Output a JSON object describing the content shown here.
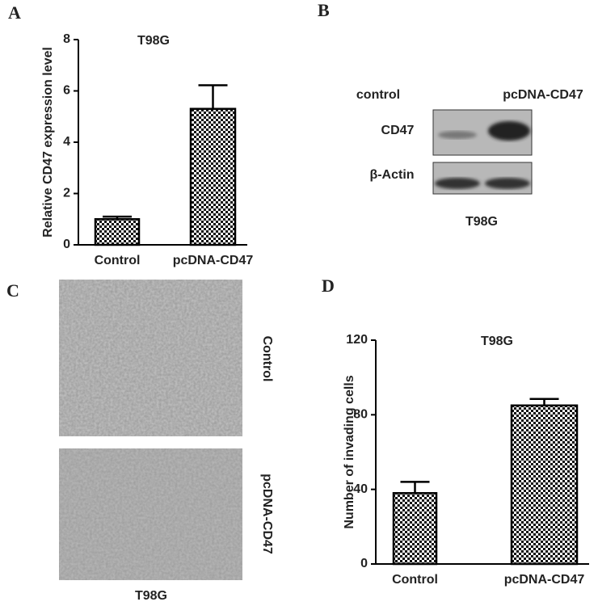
{
  "panel_labels": [
    "A",
    "B",
    "C",
    "D"
  ],
  "chart_data": [
    {
      "type": "bar",
      "title": "T98G",
      "y_label": "Relative CD47 expression level",
      "categories": [
        "Control",
        "pcDNA-CD47"
      ],
      "values": [
        1.0,
        5.3
      ],
      "errors": [
        0.1,
        0.92
      ],
      "color": "#000000",
      "ylim": [
        0,
        8
      ],
      "yticks": [
        0,
        2,
        4,
        6,
        8
      ]
    },
    {
      "type": "bar",
      "title": "T98G",
      "y_label": "Number of invading cells",
      "categories": [
        "Control",
        "pcDNA-CD47"
      ],
      "values": [
        38,
        85
      ],
      "errors": [
        6,
        3.5
      ],
      "color": "#000000",
      "ylim": [
        0,
        120
      ],
      "yticks": [
        0,
        40,
        80,
        120
      ]
    }
  ],
  "blot": {
    "lanes": [
      "control",
      "pcDNA-CD47"
    ],
    "rows": [
      "CD47",
      "β-Actin"
    ],
    "cell_line": "T98G"
  },
  "invasion": {
    "conditions": [
      "Control",
      "pcDNA-CD47"
    ],
    "cell_line": "T98G"
  }
}
